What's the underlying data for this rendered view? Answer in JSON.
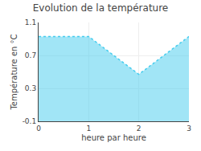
{
  "chart_data": {
    "type": "area",
    "title": "Evolution de la température",
    "xlabel": "heure par heure",
    "ylabel": "Température en °C",
    "x": [
      0,
      1,
      2,
      3
    ],
    "values": [
      0.93,
      0.93,
      0.47,
      0.93
    ],
    "color": "#44CCEE",
    "line_style": "dotted",
    "xlim": [
      0,
      3
    ],
    "xticks": [
      0,
      1,
      2,
      3
    ],
    "ylim": [
      -0.1,
      1.1
    ],
    "yticks": [
      -0.1,
      0.3,
      0.7,
      1.1
    ],
    "grid": true
  }
}
